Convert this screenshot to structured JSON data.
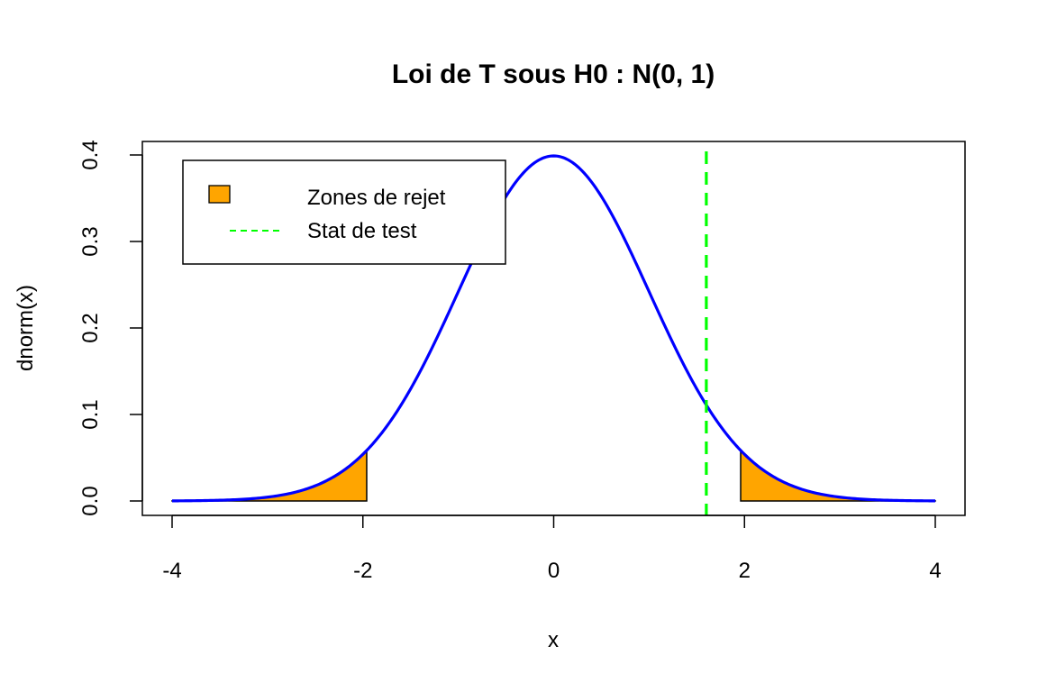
{
  "chart_data": {
    "type": "area",
    "title": "Loi de T sous H0 : N(0, 1)",
    "xlabel": "x",
    "ylabel": "dnorm(x)",
    "xlim": [
      -4,
      4
    ],
    "ylim": [
      0,
      0.4
    ],
    "x_ticks": [
      "-4",
      "-2",
      "0",
      "2",
      "4"
    ],
    "y_ticks": [
      "0.0",
      "0.1",
      "0.2",
      "0.3",
      "0.4"
    ],
    "curve": {
      "name": "dnorm(x)",
      "color": "#0000ff",
      "x": [
        -4,
        -3.5,
        -3,
        -2.5,
        -2,
        -1.96,
        -1.5,
        -1,
        -0.5,
        0,
        0.5,
        1,
        1.5,
        1.96,
        2,
        2.5,
        3,
        3.5,
        4
      ],
      "y": [
        0.0001,
        0.0009,
        0.0044,
        0.0175,
        0.054,
        0.0584,
        0.1295,
        0.242,
        0.3521,
        0.3989,
        0.3521,
        0.242,
        0.1295,
        0.0584,
        0.054,
        0.0175,
        0.0044,
        0.0009,
        0.0001
      ]
    },
    "rejection_zones": {
      "name": "Zones de rejet",
      "color": "#ffa500",
      "ranges": [
        [
          -4,
          -1.96
        ],
        [
          1.96,
          4
        ]
      ]
    },
    "test_statistic": {
      "name": "Stat de test",
      "value": 1.6,
      "color": "#00ff00",
      "style": "dashed"
    },
    "legend": {
      "position": "top-left",
      "items": [
        "Zones de rejet",
        "Stat de test"
      ]
    },
    "grid": false
  }
}
